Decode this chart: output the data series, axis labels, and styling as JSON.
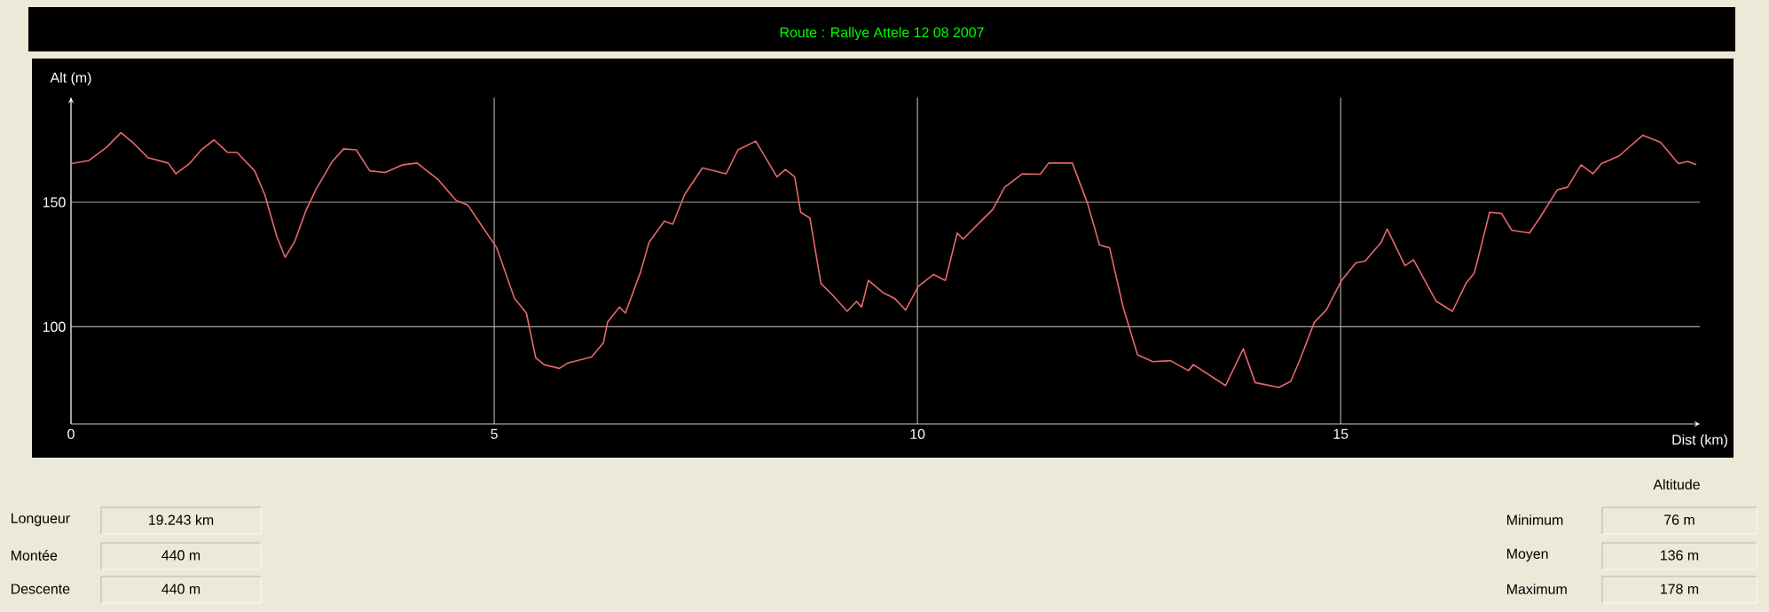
{
  "chart_data": {
    "type": "line",
    "title": "Route : Rallye Attele 12 08 2007",
    "xlabel": "Dist (km)",
    "ylabel": "Alt (m)",
    "xlim": [
      0,
      19.243
    ],
    "ylim": [
      61,
      192
    ],
    "xticks": [
      0,
      5,
      10,
      15
    ],
    "yticks": [
      100,
      150
    ],
    "grid": true,
    "series": [
      {
        "color": "#e8676b",
        "x": [
          0,
          0.21,
          0.42,
          0.59,
          0.73,
          0.91,
          1.15,
          1.24,
          1.4,
          1.54,
          1.69,
          1.85,
          1.96,
          2.17,
          2.29,
          2.43,
          2.53,
          2.64,
          2.78,
          2.9,
          3.08,
          3.22,
          3.37,
          3.53,
          3.71,
          3.92,
          4.09,
          4.34,
          4.55,
          4.69,
          4.84,
          5.03,
          5.24,
          5.38,
          5.49,
          5.59,
          5.77,
          5.87,
          6.15,
          6.29,
          6.34,
          6.48,
          6.55,
          6.73,
          6.83,
          7.01,
          7.11,
          7.25,
          7.46,
          7.74,
          7.88,
          8.09,
          8.34,
          8.44,
          8.55,
          8.62,
          8.73,
          8.86,
          9.0,
          9.17,
          9.28,
          9.34,
          9.42,
          9.59,
          9.73,
          9.86,
          10.01,
          10.19,
          10.33,
          10.47,
          10.54,
          10.75,
          10.89,
          11.03,
          11.24,
          11.45,
          11.55,
          11.83,
          12.01,
          12.15,
          12.27,
          12.43,
          12.6,
          12.78,
          12.99,
          13.2,
          13.26,
          13.64,
          13.85,
          13.99,
          14.27,
          14.41,
          14.52,
          14.69,
          14.83,
          15.01,
          15.18,
          15.29,
          15.48,
          15.55,
          15.76,
          15.86,
          16.13,
          16.32,
          16.48,
          16.58,
          16.76,
          16.9,
          17.02,
          17.23,
          17.35,
          17.56,
          17.68,
          17.84,
          17.98,
          18.08,
          18.29,
          18.57,
          18.78,
          18.99,
          19.1,
          19.2
        ],
        "values": [
          165.5,
          166.7,
          172,
          177.9,
          174,
          167.9,
          165.7,
          161.4,
          165.5,
          171,
          175,
          170,
          170,
          162.6,
          153,
          136.4,
          127.9,
          134,
          147,
          155.5,
          166,
          171.4,
          171,
          162.6,
          161.9,
          165,
          165.7,
          159,
          150.7,
          148.8,
          141.2,
          131.7,
          111.4,
          105.5,
          87.6,
          84.8,
          83.3,
          85.5,
          87.9,
          93.6,
          101.9,
          107.9,
          105.5,
          122.1,
          134,
          142.4,
          141.2,
          153.1,
          163.8,
          161.4,
          171,
          174.5,
          160.2,
          163.1,
          160.2,
          146,
          143.6,
          117.4,
          112.6,
          106.2,
          110.2,
          107.9,
          118.6,
          113.8,
          111.4,
          106.7,
          116.2,
          121,
          118.6,
          137.6,
          135.2,
          142.4,
          147.1,
          156,
          161.4,
          161.2,
          165.7,
          165.7,
          149.5,
          132.9,
          131.7,
          107.9,
          88.8,
          86,
          86.4,
          82.4,
          84.8,
          76.4,
          91.2,
          77.6,
          75.7,
          78.1,
          86.9,
          101.9,
          106.7,
          118.6,
          125.7,
          126.4,
          134,
          139.3,
          124.5,
          126.9,
          110.2,
          106.2,
          117.4,
          121.7,
          146,
          145.5,
          138.8,
          137.6,
          143.6,
          155,
          156,
          165,
          161.4,
          165.5,
          168.6,
          176.9,
          174,
          165.5,
          166.4,
          165
        ]
      }
    ],
    "annotations": [
      "Longueur",
      "19.243 km",
      "Montée",
      "440 m",
      "Descente",
      "440 m",
      "Altitude",
      "Minimum",
      "76 m",
      "Moyen",
      "136 m",
      "Maximum",
      "178 m"
    ]
  }
}
